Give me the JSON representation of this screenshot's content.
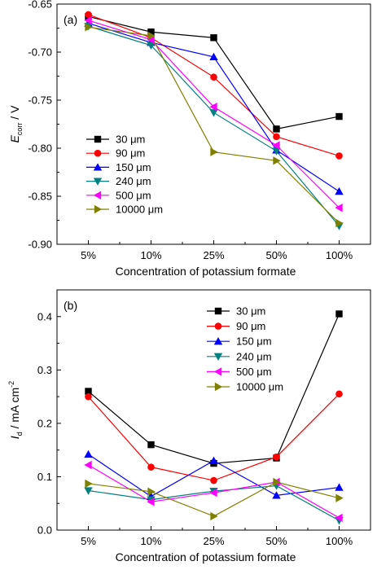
{
  "chart_data": [
    {
      "type": "line",
      "panel_label": "(a)",
      "categories": [
        "5%",
        "10%",
        "25%",
        "50%",
        "100%"
      ],
      "xlabel": "Concentration of potassium formate",
      "ylabel": {
        "main": "E",
        "sub": "corr",
        "unit": " / V"
      },
      "ylim": [
        -0.9,
        -0.65
      ],
      "yticks": [
        "-0.65",
        "-0.70",
        "-0.75",
        "-0.80",
        "-0.85",
        "-0.90"
      ],
      "ytick_values": [
        -0.65,
        -0.7,
        -0.75,
        -0.8,
        -0.85,
        -0.9
      ],
      "legend_position": "bottom-left",
      "series": [
        {
          "name": "30 μm",
          "marker": "square",
          "color": "#000000",
          "values": [
            -0.663,
            -0.679,
            -0.685,
            -0.78,
            -0.767
          ]
        },
        {
          "name": "90 μm",
          "marker": "circle",
          "color": "#ff0000",
          "values": [
            -0.661,
            -0.685,
            -0.726,
            -0.788,
            -0.808
          ]
        },
        {
          "name": "150 μm",
          "marker": "triangle-up",
          "color": "#0000ff",
          "values": [
            -0.67,
            -0.69,
            -0.705,
            -0.802,
            -0.845
          ]
        },
        {
          "name": "240 μm",
          "marker": "triangle-down",
          "color": "#008080",
          "values": [
            -0.673,
            -0.693,
            -0.763,
            -0.803,
            -0.881
          ]
        },
        {
          "name": "500 μm",
          "marker": "triangle-left",
          "color": "#ff00ff",
          "values": [
            -0.667,
            -0.687,
            -0.757,
            -0.797,
            -0.862
          ]
        },
        {
          "name": "10000 μm",
          "marker": "triangle-right",
          "color": "#808000",
          "values": [
            -0.674,
            -0.683,
            -0.804,
            -0.813,
            -0.878
          ]
        }
      ]
    },
    {
      "type": "line",
      "panel_label": "(b)",
      "categories": [
        "5%",
        "10%",
        "25%",
        "50%",
        "100%"
      ],
      "xlabel": "Concentration of potassium formate",
      "ylabel": {
        "main": "I",
        "sub": "d",
        "unit": " / mA cm",
        "sup": "-2"
      },
      "ylim": [
        0.0,
        0.45
      ],
      "yticks": [
        "0.0",
        "0.1",
        "0.2",
        "0.3",
        "0.4"
      ],
      "ytick_values": [
        0.0,
        0.1,
        0.2,
        0.3,
        0.4
      ],
      "legend_position": "top-center",
      "series": [
        {
          "name": "30 μm",
          "marker": "square",
          "color": "#000000",
          "values": [
            0.26,
            0.16,
            0.125,
            0.135,
            0.405
          ]
        },
        {
          "name": "90 μm",
          "marker": "circle",
          "color": "#ff0000",
          "values": [
            0.25,
            0.118,
            0.093,
            0.137,
            0.255
          ]
        },
        {
          "name": "150 μm",
          "marker": "triangle-up",
          "color": "#0000ff",
          "values": [
            0.142,
            0.063,
            0.13,
            0.065,
            0.08
          ]
        },
        {
          "name": "240 μm",
          "marker": "triangle-down",
          "color": "#008080",
          "values": [
            0.074,
            0.057,
            0.073,
            0.083,
            0.018
          ]
        },
        {
          "name": "500 μm",
          "marker": "triangle-left",
          "color": "#ff00ff",
          "values": [
            0.122,
            0.053,
            0.07,
            0.09,
            0.023
          ]
        },
        {
          "name": "10000 μm",
          "marker": "triangle-right",
          "color": "#808000",
          "values": [
            0.087,
            0.072,
            0.026,
            0.09,
            0.06
          ]
        }
      ]
    }
  ]
}
